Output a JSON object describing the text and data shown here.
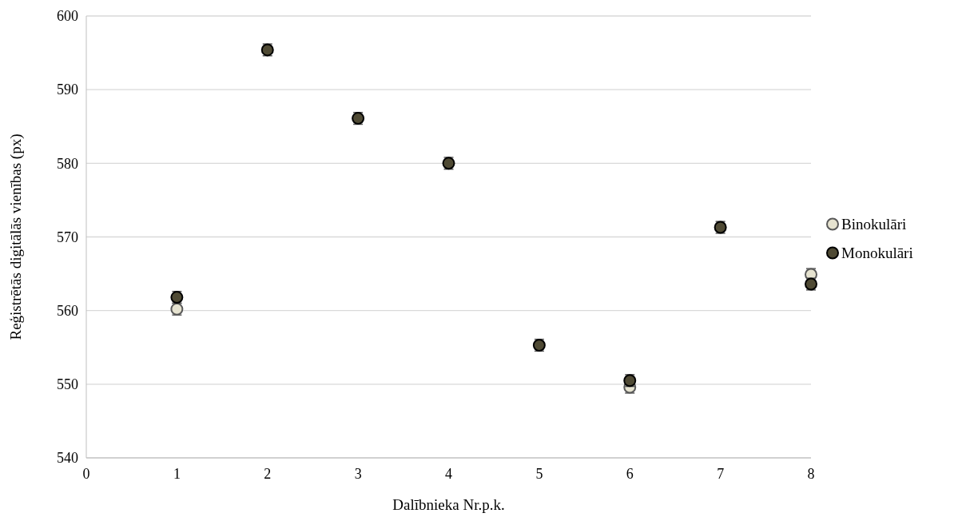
{
  "chart_data": {
    "type": "scatter",
    "xlabel": "Dalībnieka Nr.p.k.",
    "ylabel": "Reģistrētās digitālās vienības (px)",
    "x": [
      1,
      2,
      3,
      4,
      5,
      6,
      7,
      8
    ],
    "series": [
      {
        "name": "Binokulāri",
        "color": "#e6e3d0",
        "values": [
          560.2,
          null,
          null,
          null,
          null,
          549.6,
          null,
          564.9
        ],
        "errors": [
          0.8,
          null,
          null,
          null,
          null,
          0.8,
          null,
          0.8
        ]
      },
      {
        "name": "Monokulāri",
        "color": "#4f4a34",
        "values": [
          561.8,
          595.4,
          586.1,
          580.0,
          555.3,
          550.5,
          571.3,
          563.6
        ],
        "errors": [
          0.8,
          0.8,
          0.8,
          0.8,
          0.8,
          0.8,
          0.8,
          0.8
        ]
      }
    ],
    "xlim": [
      0,
      8
    ],
    "xticks": [
      0,
      1,
      2,
      3,
      4,
      5,
      6,
      7,
      8
    ],
    "ylim": [
      540,
      600
    ],
    "yticks": [
      540,
      550,
      560,
      570,
      580,
      590,
      600
    ],
    "grid": "y",
    "legend": "right",
    "marker": "circle"
  }
}
